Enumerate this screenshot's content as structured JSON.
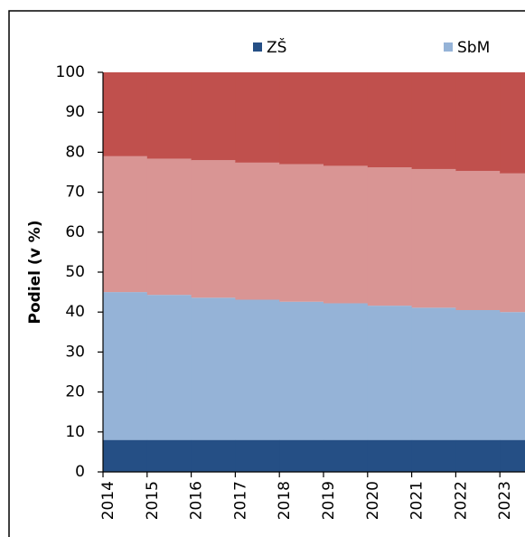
{
  "chart_data": {
    "type": "stacked_area_step",
    "y_label": "Podiel (v %)",
    "categories": [
      "2014",
      "2015",
      "2016",
      "2017",
      "2018",
      "2019",
      "2020",
      "2021",
      "2022",
      "2023"
    ],
    "series": [
      {
        "name": "ZŠ",
        "color": "#254f85",
        "values": [
          8,
          8,
          8,
          8,
          8,
          8,
          8,
          8,
          8,
          8
        ]
      },
      {
        "name": "SbM",
        "color": "#95b3d7",
        "values": [
          37,
          36.3,
          35.6,
          35.1,
          34.6,
          34.2,
          33.6,
          33.1,
          32.5,
          32
        ]
      },
      {
        "color": "#d99594",
        "values": [
          34,
          34.1,
          34.4,
          34.3,
          34.4,
          34.4,
          34.6,
          34.7,
          34.8,
          34.7
        ]
      },
      {
        "color": "#c0504d",
        "values": [
          21,
          21.6,
          22,
          22.6,
          23,
          23.4,
          23.8,
          24.2,
          24.7,
          25.3
        ]
      }
    ],
    "ylim": [
      0,
      100
    ],
    "yticks": [
      0,
      10,
      20,
      30,
      40,
      50,
      60,
      70,
      80,
      90,
      100
    ],
    "legend": "top"
  }
}
